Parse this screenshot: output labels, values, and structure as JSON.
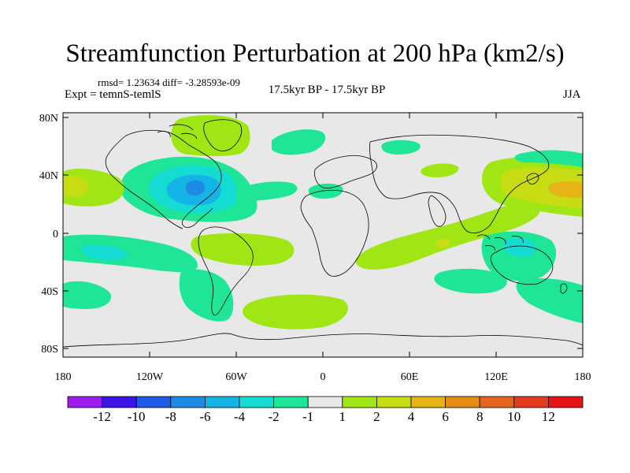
{
  "title": "Streamfunction Perturbation at 200 hPa (km2/s)",
  "stats": "rmsd= 1.23634 diff= -3.28593e-09",
  "experiment": "Expt = temnS-temlS",
  "period": "17.5kyr BP - 17.5kyr BP",
  "season": "JJA",
  "axes": {
    "x_ticks": [
      "180",
      "120W",
      "60W",
      "0",
      "60E",
      "120E",
      "180"
    ],
    "y_ticks": [
      "80N",
      "40N",
      "0",
      "40S",
      "80S"
    ],
    "lon_range": [
      -180,
      180
    ],
    "lat_range": [
      -90,
      90
    ]
  },
  "colorbar": {
    "labels": [
      "-12",
      "-10",
      "-8",
      "-6",
      "-4",
      "-2",
      "-1",
      "1",
      "2",
      "4",
      "6",
      "8",
      "10",
      "12"
    ],
    "colors": [
      "#9e1cf0",
      "#3c14e6",
      "#1e5ae6",
      "#1e8ce6",
      "#14b4e6",
      "#14dcd2",
      "#1ee696",
      "#e8e8e8",
      "#a0e614",
      "#c8dc14",
      "#e6b414",
      "#e68c14",
      "#e6641e",
      "#e63c1e",
      "#e61414"
    ]
  }
}
